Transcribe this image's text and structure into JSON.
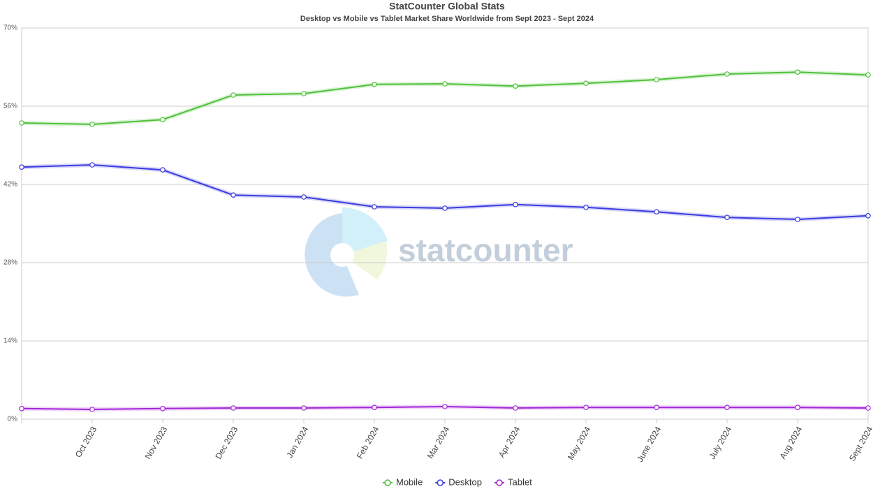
{
  "chart_data": {
    "type": "line",
    "title": "StatCounter Global Stats",
    "subtitle": "Desktop vs Mobile vs Tablet Market Share Worldwide from Sept 2023 - Sept 2024",
    "watermark": "statcounter",
    "categories": [
      null,
      "Oct 2023",
      "Nov 2023",
      "Dec 2023",
      "Jan 2024",
      "Feb 2024",
      "Mar 2024",
      "Apr 2024",
      "May 2024",
      "June 2024",
      "July 2024",
      "Aug 2024",
      "Sept 2024"
    ],
    "series": [
      {
        "name": "Mobile",
        "color": "#4fc13a",
        "values": [
          53.0,
          52.75,
          53.6,
          58.0,
          58.25,
          59.9,
          60.0,
          59.6,
          60.1,
          60.75,
          61.75,
          62.1,
          61.6
        ]
      },
      {
        "name": "Desktop",
        "color": "#3b3be0",
        "values": [
          45.1,
          45.5,
          44.6,
          40.1,
          39.75,
          38.0,
          37.75,
          38.4,
          37.9,
          37.1,
          36.1,
          35.75,
          36.4
        ]
      },
      {
        "name": "Tablet",
        "color": "#a326d8",
        "values": [
          1.9,
          1.75,
          1.9,
          2.0,
          2.0,
          2.1,
          2.25,
          2.0,
          2.1,
          2.1,
          2.1,
          2.1,
          2.0
        ]
      }
    ],
    "ylim": [
      0,
      70
    ],
    "yticks": [
      {
        "value": 0,
        "label": "0%"
      },
      {
        "value": 14,
        "label": "14%"
      },
      {
        "value": 28,
        "label": "28%"
      },
      {
        "value": 42,
        "label": "42%"
      },
      {
        "value": 56,
        "label": "56%"
      },
      {
        "value": 70,
        "label": "70%"
      }
    ],
    "grid": true,
    "legend": "bottom"
  }
}
